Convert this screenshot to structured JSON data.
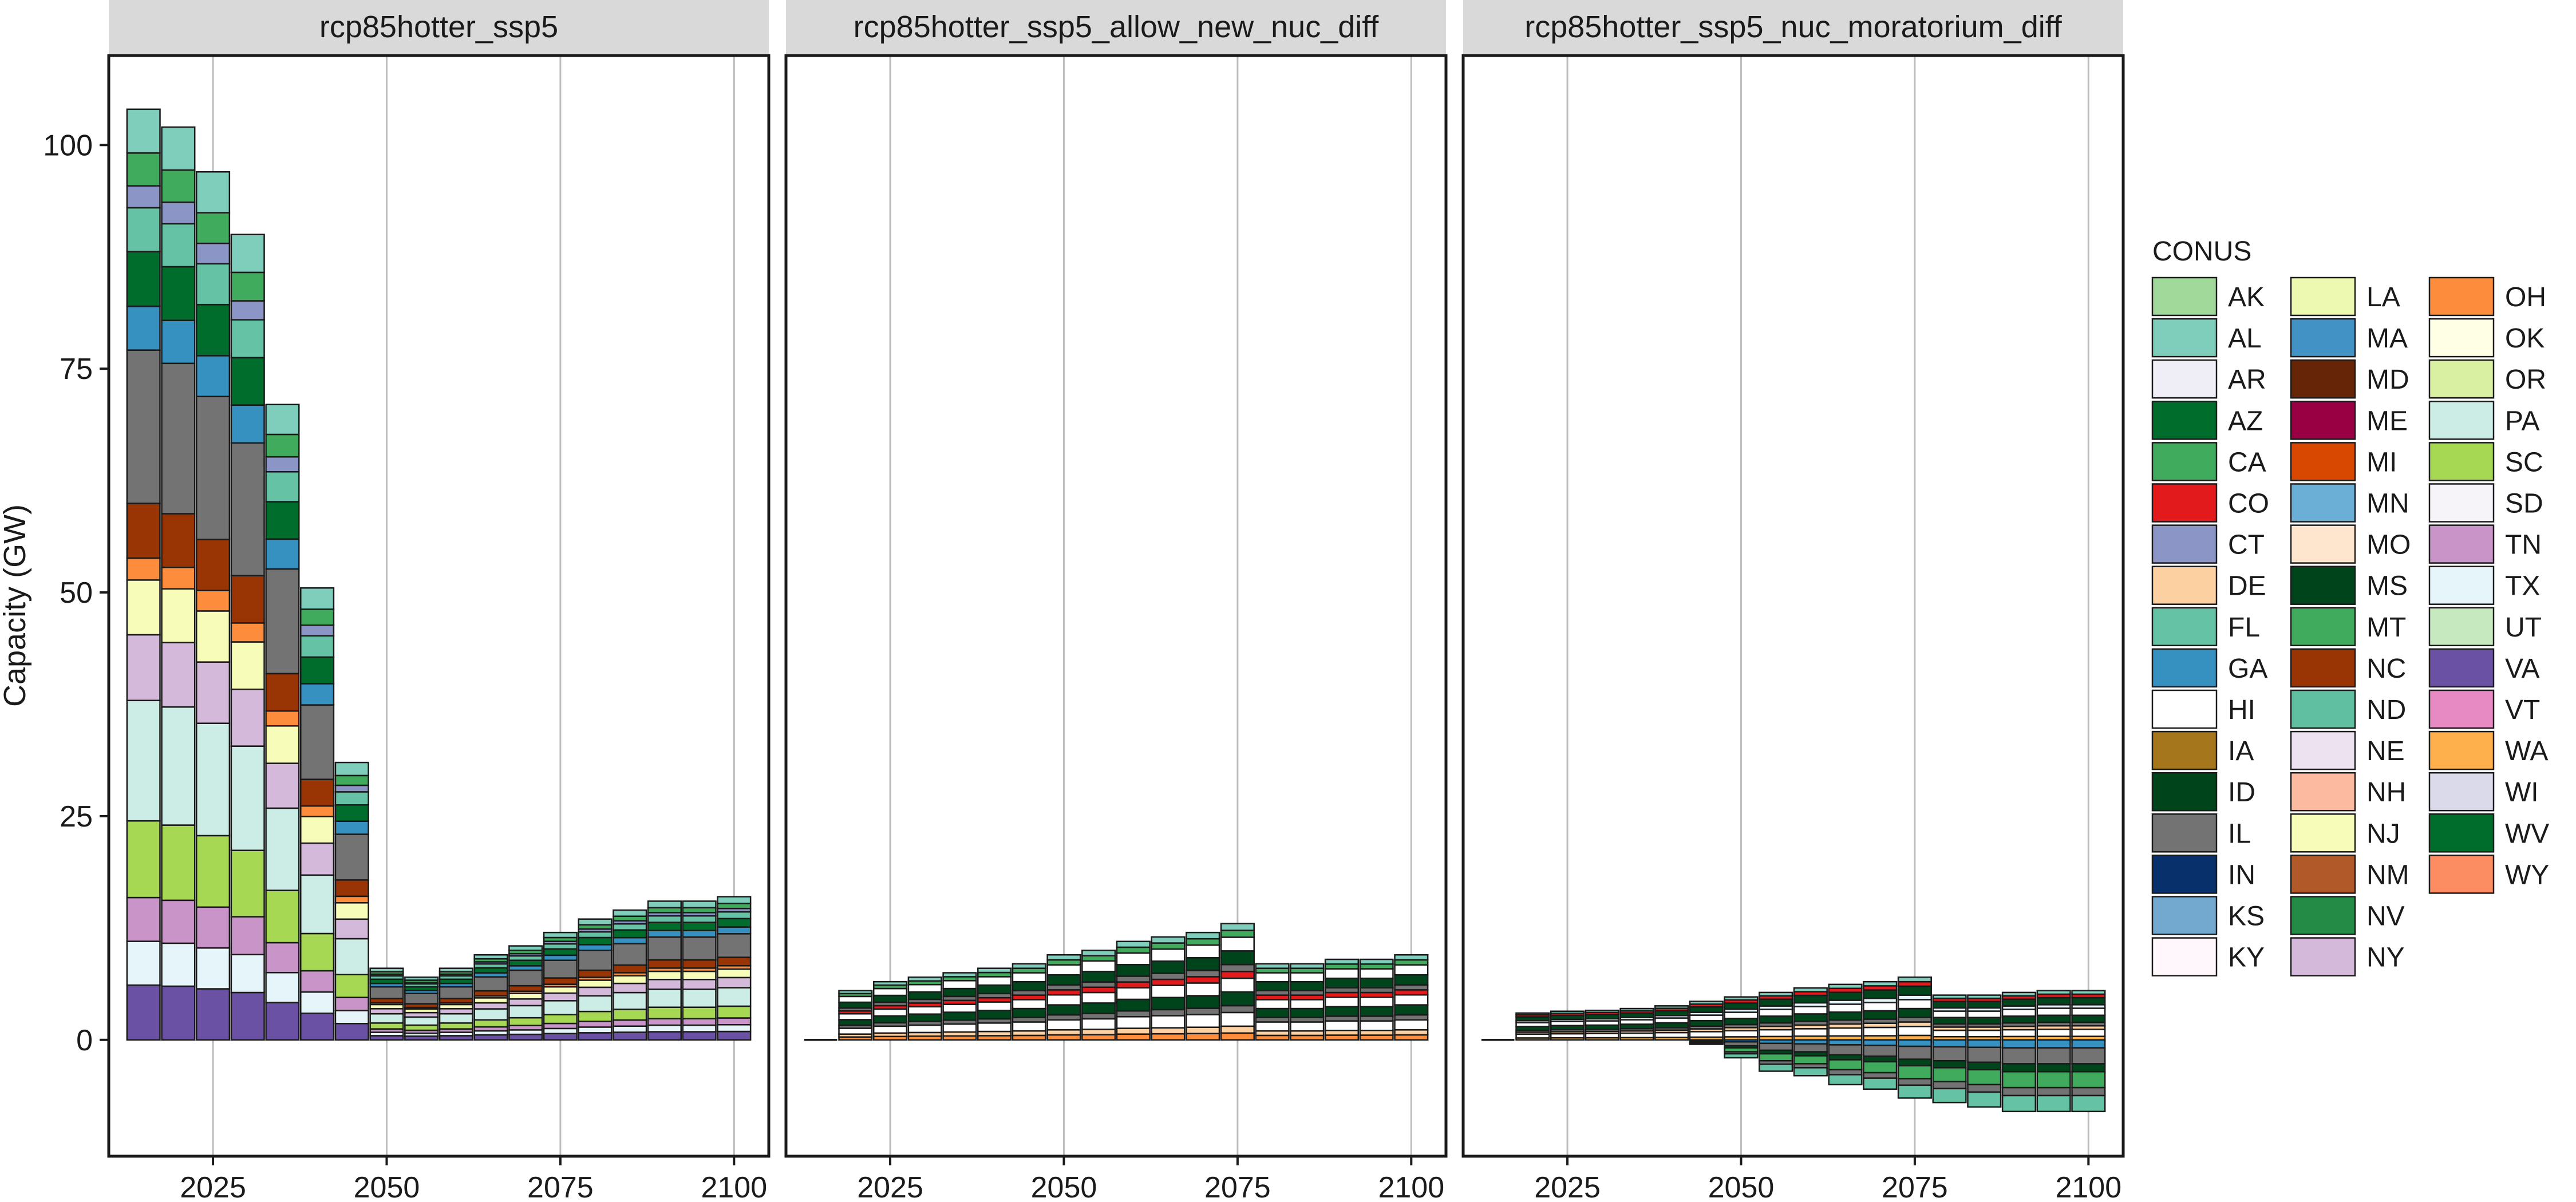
{
  "chart_data": {
    "type": "bar",
    "stacked": true,
    "ylabel": "Capacity (GW)",
    "xlabel": "",
    "x_ticks": [
      2025,
      2050,
      2075,
      2100
    ],
    "y_ticks": [
      0,
      25,
      50,
      75,
      100
    ],
    "xlim": [
      2010,
      2105
    ],
    "ylim": [
      -13,
      110
    ],
    "grid": "vertical",
    "legend": {
      "title": "CONUS",
      "position": "right",
      "entries": [
        {
          "name": "AK",
          "color": "#a1d99b"
        },
        {
          "name": "AL",
          "color": "#7fcdbb"
        },
        {
          "name": "AR",
          "color": "#efedf5"
        },
        {
          "name": "AZ",
          "color": "#006d2c"
        },
        {
          "name": "CA",
          "color": "#41ab5d"
        },
        {
          "name": "CO",
          "color": "#e31a1c"
        },
        {
          "name": "CT",
          "color": "#8c96c6"
        },
        {
          "name": "DE",
          "color": "#fdd0a2"
        },
        {
          "name": "FL",
          "color": "#66c2a4"
        },
        {
          "name": "GA",
          "color": "#3690c0"
        },
        {
          "name": "HI",
          "color": "#ffffff"
        },
        {
          "name": "IA",
          "color": "#a6761d"
        },
        {
          "name": "ID",
          "color": "#00441b"
        },
        {
          "name": "IL",
          "color": "#737373"
        },
        {
          "name": "IN",
          "color": "#08306b"
        },
        {
          "name": "KS",
          "color": "#74a9cf"
        },
        {
          "name": "KY",
          "color": "#fff7fb"
        },
        {
          "name": "LA",
          "color": "#edf8b1"
        },
        {
          "name": "MA",
          "color": "#4292c6"
        },
        {
          "name": "MD",
          "color": "#662506"
        },
        {
          "name": "ME",
          "color": "#980043"
        },
        {
          "name": "MI",
          "color": "#d94801"
        },
        {
          "name": "MN",
          "color": "#6baed6"
        },
        {
          "name": "MO",
          "color": "#fee6ce"
        },
        {
          "name": "MS",
          "color": "#00441b"
        },
        {
          "name": "MT",
          "color": "#41ab5d"
        },
        {
          "name": "NC",
          "color": "#993404"
        },
        {
          "name": "ND",
          "color": "#5fbfa0"
        },
        {
          "name": "NE",
          "color": "#ece2f0"
        },
        {
          "name": "NH",
          "color": "#fcbba1"
        },
        {
          "name": "NJ",
          "color": "#f7fcb9"
        },
        {
          "name": "NM",
          "color": "#b15928"
        },
        {
          "name": "NV",
          "color": "#238b45"
        },
        {
          "name": "NY",
          "color": "#d4b9da"
        },
        {
          "name": "OH",
          "color": "#fd8d3c"
        },
        {
          "name": "OK",
          "color": "#ffffe5"
        },
        {
          "name": "OR",
          "color": "#d9f0a3"
        },
        {
          "name": "PA",
          "color": "#ccece6"
        },
        {
          "name": "SC",
          "color": "#a6d854"
        },
        {
          "name": "SD",
          "color": "#f7f4f9"
        },
        {
          "name": "TN",
          "color": "#c994c7"
        },
        {
          "name": "TX",
          "color": "#e5f5f9"
        },
        {
          "name": "UT",
          "color": "#c7e9c0"
        },
        {
          "name": "VA",
          "color": "#6a51a3"
        },
        {
          "name": "VT",
          "color": "#e78ac3"
        },
        {
          "name": "WA",
          "color": "#fdb04b"
        },
        {
          "name": "WI",
          "color": "#dadaeb"
        },
        {
          "name": "WV",
          "color": "#006d2c"
        },
        {
          "name": "WY",
          "color": "#fc8d62"
        }
      ]
    },
    "facets": [
      {
        "name": "rcp85hotter_ssp5",
        "x": [
          2015,
          2020,
          2025,
          2030,
          2035,
          2040,
          2045,
          2050,
          2055,
          2060,
          2065,
          2070,
          2075,
          2080,
          2085,
          2090,
          2095,
          2100
        ],
        "positive_totals": [
          104,
          102,
          97,
          90,
          71,
          50.5,
          31,
          8,
          7,
          8,
          9.5,
          10.5,
          12,
          13.5,
          14.5,
          15.5,
          15.5,
          16
        ],
        "negative_totals": [
          0,
          0,
          0,
          0,
          0,
          0,
          0,
          0,
          0,
          0,
          0,
          0,
          0,
          0,
          0,
          0,
          0,
          0
        ]
      },
      {
        "name": "rcp85hotter_ssp5_allow_new_nuc_diff",
        "x": [
          2015,
          2020,
          2025,
          2030,
          2035,
          2040,
          2045,
          2050,
          2055,
          2060,
          2065,
          2070,
          2075,
          2080,
          2085,
          2090,
          2095,
          2100
        ],
        "positive_totals": [
          0,
          5.5,
          6.5,
          7,
          7.5,
          8,
          8.5,
          9.5,
          10,
          11,
          11.5,
          12,
          13,
          8.5,
          8.5,
          9,
          9,
          9.5
        ],
        "negative_totals": [
          0,
          0,
          0,
          0,
          0,
          0,
          0,
          0,
          0,
          0,
          0,
          0,
          0,
          0,
          0,
          0,
          0,
          0
        ]
      },
      {
        "name": "rcp85hotter_ssp5_nuc_moratorium_diff",
        "x": [
          2015,
          2020,
          2025,
          2030,
          2035,
          2040,
          2045,
          2050,
          2055,
          2060,
          2065,
          2070,
          2075,
          2080,
          2085,
          2090,
          2095,
          2100
        ],
        "positive_totals": [
          0,
          3,
          3.2,
          3.3,
          3.5,
          3.8,
          4.3,
          4.8,
          5.3,
          5.8,
          6.2,
          6.5,
          7,
          5,
          5,
          5.3,
          5.5,
          5.5
        ],
        "negative_totals": [
          0,
          0,
          0,
          0,
          0,
          0,
          -0.5,
          -2,
          -3.5,
          -4,
          -5,
          -5.5,
          -6.5,
          -7,
          -7.5,
          -8,
          -8,
          -8
        ]
      }
    ]
  }
}
